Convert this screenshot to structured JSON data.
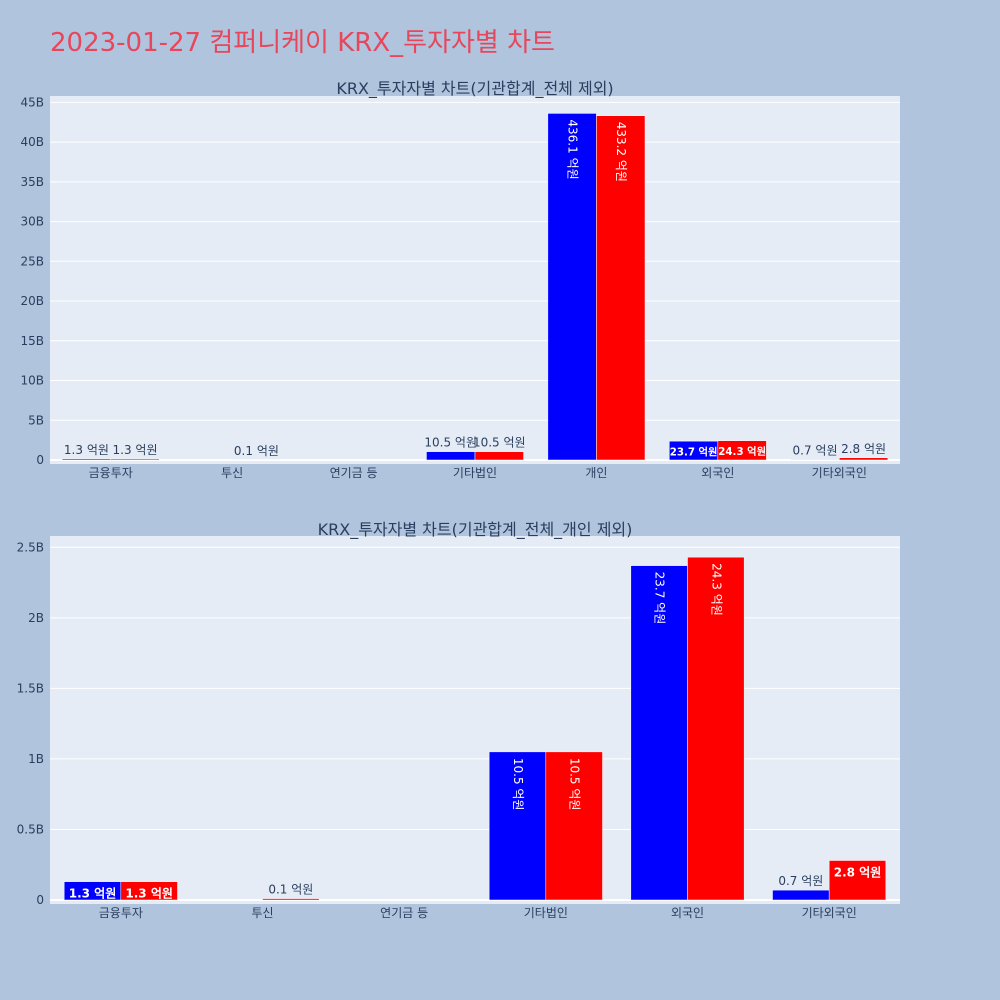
{
  "page_title": "2023-01-27 컴퍼니케이 KRX_투자자별 차트",
  "colors": {
    "background": "#b0c4de",
    "plot_bg": "#e5ecf6",
    "series_a": "#0000ff",
    "series_b": "#ff0000",
    "title": "#e8465a"
  },
  "chart_data": [
    {
      "type": "bar",
      "title": "KRX_투자자별 차트(기관합계_전체 제외)",
      "categories": [
        "금융투자",
        "투신",
        "연기금 등",
        "기타법인",
        "개인",
        "외국인",
        "기타외국인"
      ],
      "series": [
        {
          "color": "#0000ff",
          "values": [
            130000000,
            0,
            0,
            1050000000,
            43610000000,
            2370000000,
            70000000
          ],
          "labels": [
            "1.3 억원",
            "",
            "",
            "10.5 억원",
            "436.1 억원",
            "23.7 억원",
            "0.7 억원"
          ]
        },
        {
          "color": "#ff0000",
          "values": [
            130000000,
            10000000,
            0,
            1050000000,
            43320000000,
            2430000000,
            280000000
          ],
          "labels": [
            "1.3 억원",
            "0.1 억원",
            "",
            "10.5 억원",
            "433.2 억원",
            "24.3 억원",
            "2.8 억원"
          ]
        }
      ],
      "ylim": [
        0,
        45800000000
      ],
      "yticks": [
        0,
        5000000000,
        10000000000,
        15000000000,
        20000000000,
        25000000000,
        30000000000,
        35000000000,
        40000000000,
        45000000000
      ],
      "ytick_labels": [
        "0",
        "5B",
        "10B",
        "15B",
        "20B",
        "25B",
        "30B",
        "35B",
        "40B",
        "45B"
      ],
      "grid": true
    },
    {
      "type": "bar",
      "title": "KRX_투자자별 차트(기관합계_전체_개인 제외)",
      "categories": [
        "금융투자",
        "투신",
        "연기금 등",
        "기타법인",
        "외국인",
        "기타외국인"
      ],
      "series": [
        {
          "color": "#0000ff",
          "values": [
            130000000,
            0,
            0,
            1050000000,
            2370000000,
            70000000
          ],
          "labels": [
            "1.3 억원",
            "",
            "",
            "10.5 억원",
            "23.7 억원",
            "0.7 억원"
          ]
        },
        {
          "color": "#ff0000",
          "values": [
            130000000,
            10000000,
            0,
            1050000000,
            2430000000,
            280000000
          ],
          "labels": [
            "1.3 억원",
            "0.1 억원",
            "",
            "10.5 억원",
            "24.3 억원",
            "2.8 억원"
          ]
        }
      ],
      "ylim": [
        0,
        2580000000
      ],
      "yticks": [
        0,
        500000000,
        1000000000,
        1500000000,
        2000000000,
        2500000000
      ],
      "ytick_labels": [
        "0",
        "0.5B",
        "1B",
        "1.5B",
        "2B",
        "2.5B"
      ],
      "grid": true
    }
  ]
}
